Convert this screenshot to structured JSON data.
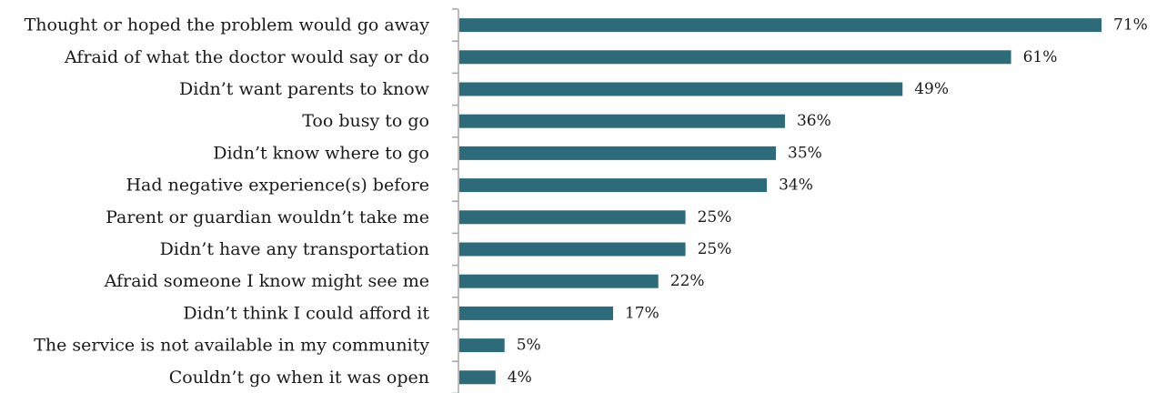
{
  "chart_data": {
    "type": "bar",
    "orientation": "horizontal",
    "title": "",
    "xlabel": "",
    "ylabel": "",
    "categories": [
      "Thought or hoped the problem would go away",
      "Afraid of what the doctor would say or do",
      "Didn’t want parents to know",
      "Too busy to go",
      "Didn’t know where to go",
      "Had negative experience(s) before",
      "Parent or guardian wouldn’t take me",
      "Didn’t have any transportation",
      "Afraid someone I know might see me",
      "Didn’t think I could afford it",
      "The service is not available in my community",
      "Couldn’t go when it was open"
    ],
    "values": [
      71,
      61,
      49,
      36,
      35,
      34,
      25,
      25,
      22,
      17,
      5,
      4
    ],
    "value_labels": [
      "71%",
      "61%",
      "49%",
      "36%",
      "35%",
      "34%",
      "25%",
      "25%",
      "22%",
      "17%",
      "5%",
      "4%"
    ],
    "xlim": [
      0,
      71
    ],
    "grid": false,
    "legend": "none",
    "bar_color": "#2e6b7a"
  }
}
